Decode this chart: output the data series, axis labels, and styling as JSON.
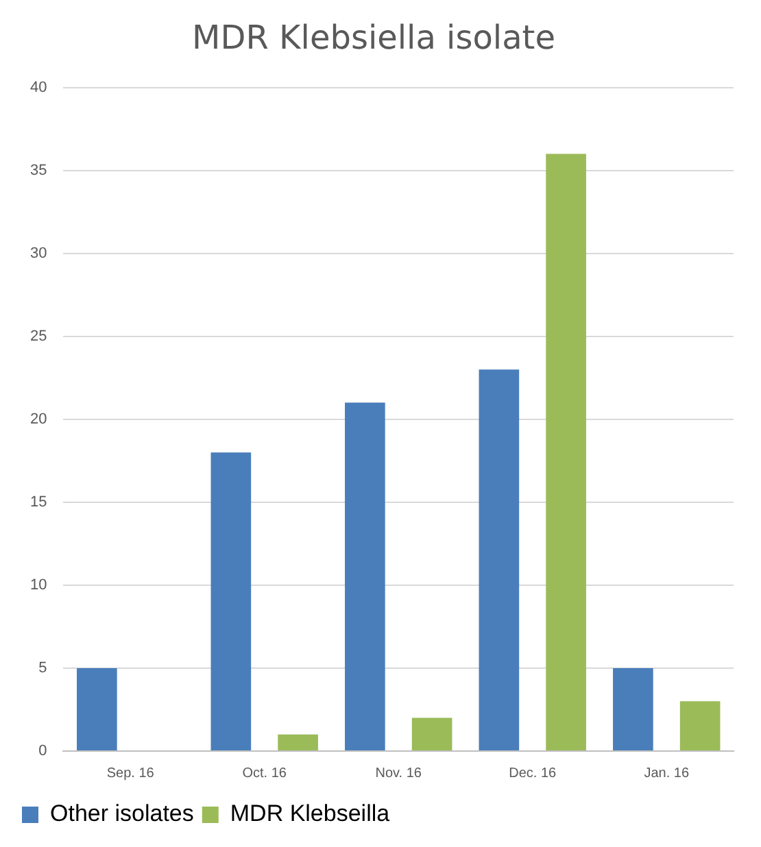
{
  "chart_data": {
    "type": "bar",
    "title": "MDR Klebsiella isolate",
    "categories": [
      "Sep. 16",
      "Oct. 16",
      "Nov. 16",
      "Dec. 16",
      "Jan. 16"
    ],
    "series": [
      {
        "name": "Other isolates",
        "color": "#4a7ebb",
        "values": [
          5,
          18,
          21,
          23,
          5
        ]
      },
      {
        "name": "MDR Klebseilla",
        "color": "#9bbb59",
        "values": [
          0,
          1,
          2,
          36,
          3
        ]
      }
    ],
    "ylim": [
      0,
      40
    ],
    "yticks": [
      0,
      5,
      10,
      15,
      20,
      25,
      30,
      35,
      40
    ],
    "grid": "y",
    "legend": "bottom"
  }
}
